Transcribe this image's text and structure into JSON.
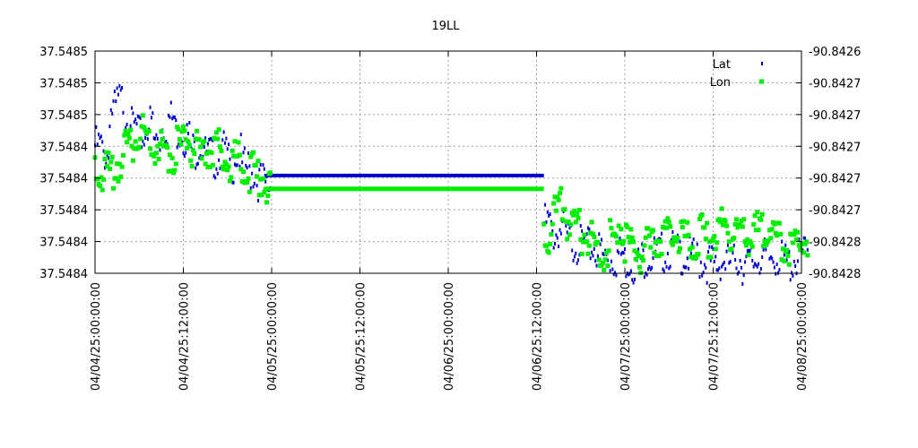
{
  "chart_data": {
    "type": "scatter",
    "title": "19LL",
    "xlabel": "",
    "ylabel": "",
    "grid": true,
    "legend_position": "top-right",
    "x_tick_labels": [
      "04/04/25:00:00:00",
      "04/04/25:12:00:00",
      "04/05/25:00:00:00",
      "04/05/25:12:00:00",
      "04/06/25:00:00:00",
      "04/06/25:12:00:00",
      "04/07/25:00:00:00",
      "04/07/25:12:00:00",
      "04/08/25:00:00:00"
    ],
    "x_range_hours": [
      0,
      96
    ],
    "y_left_tick_labels": [
      "37.5485",
      "37.5485",
      "37.5485",
      "37.5484",
      "37.5484",
      "37.5484",
      "37.5484",
      "37.5484"
    ],
    "y_right_tick_labels": [
      "-90.8426",
      "-90.8427",
      "-90.8427",
      "-90.8427",
      "-90.8427",
      "-90.8427",
      "-90.8428",
      "-90.8428"
    ],
    "series": [
      {
        "name": "Lat",
        "color": "#0000cc",
        "marker": "dot",
        "segments": [
          {
            "x": [
              0,
              1,
              2,
              3,
              4,
              5,
              6,
              7,
              8,
              9,
              10,
              11,
              12,
              13,
              14,
              15,
              16,
              17,
              18,
              19,
              20,
              21,
              22,
              23
            ],
            "y": [
              0.62,
              0.58,
              0.78,
              0.82,
              0.76,
              0.7,
              0.66,
              0.72,
              0.64,
              0.7,
              0.74,
              0.68,
              0.66,
              0.6,
              0.62,
              0.58,
              0.56,
              0.6,
              0.54,
              0.58,
              0.52,
              0.5,
              0.46,
              0.44
            ]
          },
          {
            "x": [
              23,
              24,
              25,
              26,
              27,
              28,
              29,
              30,
              31,
              32,
              33,
              34,
              35,
              36,
              37,
              38,
              39,
              40,
              41,
              42,
              43,
              44,
              45,
              46,
              47,
              48,
              49,
              50,
              51,
              52,
              53,
              54,
              55,
              56,
              57,
              58,
              59,
              60,
              61
            ],
            "y": [
              0.44,
              0.44,
              0.44,
              0.44,
              0.44,
              0.44,
              0.44,
              0.44,
              0.44,
              0.44,
              0.44,
              0.44,
              0.44,
              0.44,
              0.44,
              0.44,
              0.44,
              0.44,
              0.44,
              0.44,
              0.44,
              0.44,
              0.44,
              0.44,
              0.44,
              0.44,
              0.44,
              0.44,
              0.44,
              0.44,
              0.44,
              0.44,
              0.44,
              0.44,
              0.44,
              0.44,
              0.44,
              0.44,
              0.44
            ]
          },
          {
            "x": [
              61,
              62,
              63,
              64,
              65,
              66,
              67,
              68,
              69,
              70,
              71,
              72,
              73,
              74,
              75,
              76,
              77,
              78,
              79,
              80,
              81,
              82,
              83,
              84,
              85,
              86,
              87,
              88,
              89,
              90,
              91,
              92,
              93,
              94,
              95,
              96
            ],
            "y": [
              0.27,
              0.22,
              0.24,
              0.2,
              0.18,
              0.17,
              0.16,
              0.15,
              0.12,
              0.11,
              0.13,
              0.1,
              0.09,
              0.11,
              0.12,
              0.13,
              0.14,
              0.15,
              0.13,
              0.12,
              0.11,
              0.1,
              0.09,
              0.08,
              0.1,
              0.09,
              0.11,
              0.08,
              0.1,
              0.12,
              0.11,
              0.12,
              0.1,
              0.09,
              0.11,
              0.13
            ]
          }
        ]
      },
      {
        "name": "Lon",
        "color": "#00ee00",
        "marker": "square",
        "segments": [
          {
            "x": [
              0,
              1,
              2,
              3,
              4,
              5,
              6,
              7,
              8,
              9,
              10,
              11,
              12,
              13,
              14,
              15,
              16,
              17,
              18,
              19,
              20,
              21,
              22,
              23
            ],
            "y": [
              0.52,
              0.5,
              0.48,
              0.54,
              0.6,
              0.64,
              0.68,
              0.66,
              0.62,
              0.6,
              0.58,
              0.62,
              0.64,
              0.6,
              0.56,
              0.6,
              0.62,
              0.58,
              0.54,
              0.56,
              0.52,
              0.5,
              0.48,
              0.45
            ]
          },
          {
            "x": [
              23,
              24,
              25,
              26,
              27,
              28,
              29,
              30,
              31,
              32,
              33,
              34,
              35,
              36,
              37,
              38,
              39,
              40,
              41,
              42,
              43,
              44,
              45,
              46,
              47,
              48,
              49,
              50,
              51,
              52,
              53,
              54,
              55,
              56,
              57,
              58,
              59,
              60,
              61
            ],
            "y": [
              0.38,
              0.38,
              0.38,
              0.38,
              0.38,
              0.38,
              0.38,
              0.38,
              0.38,
              0.38,
              0.38,
              0.38,
              0.38,
              0.38,
              0.38,
              0.38,
              0.38,
              0.38,
              0.38,
              0.38,
              0.38,
              0.38,
              0.38,
              0.38,
              0.38,
              0.38,
              0.38,
              0.38,
              0.38,
              0.38,
              0.38,
              0.38,
              0.38,
              0.38,
              0.38,
              0.38,
              0.38,
              0.38,
              0.38
            ]
          },
          {
            "x": [
              61,
              62,
              63,
              64,
              65,
              66,
              67,
              68,
              69,
              70,
              71,
              72,
              73,
              74,
              75,
              76,
              77,
              78,
              79,
              80,
              81,
              82,
              83,
              84,
              85,
              86,
              87,
              88,
              89,
              90,
              91,
              92,
              93,
              94,
              95,
              96
            ],
            "y": [
              0.22,
              0.3,
              0.34,
              0.28,
              0.24,
              0.22,
              0.2,
              0.16,
              0.14,
              0.2,
              0.26,
              0.18,
              0.14,
              0.12,
              0.16,
              0.2,
              0.22,
              0.24,
              0.22,
              0.2,
              0.18,
              0.22,
              0.2,
              0.24,
              0.26,
              0.24,
              0.22,
              0.2,
              0.22,
              0.24,
              0.26,
              0.2,
              0.18,
              0.16,
              0.18,
              0.2
            ]
          }
        ]
      }
    ]
  }
}
